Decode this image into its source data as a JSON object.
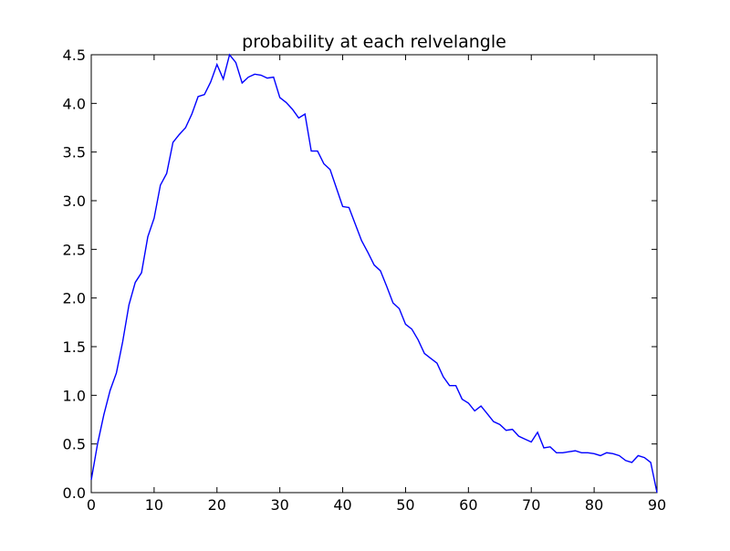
{
  "chart_data": {
    "type": "line",
    "title": "probability at each relvelangle",
    "xlabel": "",
    "ylabel": "",
    "xlim": [
      0,
      90
    ],
    "ylim": [
      0,
      4.5
    ],
    "xticks": [
      0,
      10,
      20,
      30,
      40,
      50,
      60,
      70,
      80,
      90
    ],
    "yticks": [
      0.0,
      0.5,
      1.0,
      1.5,
      2.0,
      2.5,
      3.0,
      3.5,
      4.0,
      4.5
    ],
    "xtick_labels": [
      "0",
      "10",
      "20",
      "30",
      "40",
      "50",
      "60",
      "70",
      "80",
      "90"
    ],
    "ytick_labels": [
      "0.0",
      "0.5",
      "1.0",
      "1.5",
      "2.0",
      "2.5",
      "3.0",
      "3.5",
      "4.0",
      "4.5"
    ],
    "grid": false,
    "line_color": "#0000ff",
    "series": [
      {
        "x": [
          0,
          1,
          2,
          3,
          4,
          5,
          6,
          7,
          8,
          9,
          10,
          11,
          12,
          13,
          14,
          15,
          16,
          17,
          18,
          19,
          20,
          21,
          22,
          23,
          24,
          25,
          26,
          27,
          28,
          29,
          30,
          31,
          32,
          33,
          34,
          35,
          36,
          37,
          38,
          39,
          40,
          41,
          42,
          43,
          44,
          45,
          46,
          47,
          48,
          49,
          50,
          51,
          52,
          53,
          54,
          55,
          56,
          57,
          58,
          59,
          60,
          61,
          62,
          63,
          64,
          65,
          66,
          67,
          68,
          69,
          70,
          71,
          72,
          73,
          74,
          75,
          76,
          77,
          78,
          79,
          80,
          81,
          82,
          83,
          84,
          85,
          86,
          87,
          88,
          89,
          90
        ],
        "values": [
          0.13,
          0.5,
          0.8,
          1.05,
          1.23,
          1.55,
          1.93,
          2.16,
          2.26,
          2.63,
          2.82,
          3.16,
          3.28,
          3.6,
          3.68,
          3.75,
          3.89,
          4.07,
          4.09,
          4.22,
          4.4,
          4.25,
          4.5,
          4.42,
          4.21,
          4.27,
          4.3,
          4.29,
          4.26,
          4.27,
          4.06,
          4.01,
          3.94,
          3.85,
          3.89,
          3.51,
          3.51,
          3.38,
          3.32,
          3.13,
          2.94,
          2.93,
          2.76,
          2.59,
          2.47,
          2.34,
          2.28,
          2.12,
          1.95,
          1.89,
          1.73,
          1.68,
          1.57,
          1.43,
          1.38,
          1.33,
          1.19,
          1.1,
          1.1,
          0.96,
          0.92,
          0.84,
          0.89,
          0.81,
          0.73,
          0.7,
          0.64,
          0.65,
          0.58,
          0.55,
          0.52,
          0.62,
          0.46,
          0.47,
          0.41,
          0.41,
          0.42,
          0.43,
          0.41,
          0.41,
          0.4,
          0.38,
          0.41,
          0.4,
          0.38,
          0.33,
          0.31,
          0.38,
          0.36,
          0.31,
          0.0
        ]
      }
    ]
  }
}
